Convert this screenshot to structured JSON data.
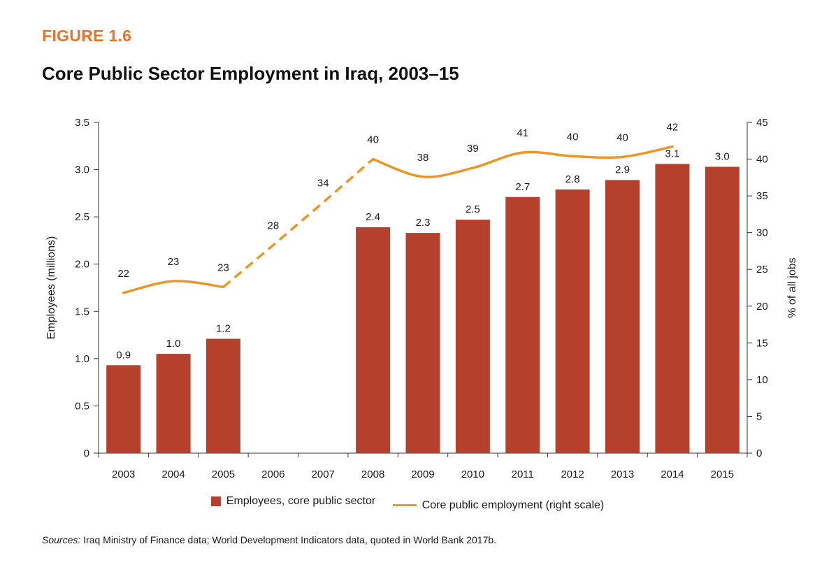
{
  "figure": {
    "label": "FIGURE 1.6",
    "title": "Core Public Sector Employment in Iraq, 2003–15",
    "source_prefix": "Sources:",
    "source_text": "Iraq Ministry of Finance data; World Development Indicators data, quoted in World Bank 2017b."
  },
  "colors": {
    "bar": "#b5402b",
    "line": "#e8972b",
    "label": "#e8732b"
  },
  "chart_data": {
    "type": "bar+line",
    "categories": [
      "2003",
      "2004",
      "2005",
      "2006",
      "2007",
      "2008",
      "2009",
      "2010",
      "2011",
      "2012",
      "2013",
      "2014",
      "2015"
    ],
    "series": [
      {
        "name": "Employees, core public sector",
        "type": "bar",
        "axis": "left",
        "values": [
          0.93,
          1.05,
          1.21,
          null,
          null,
          2.39,
          2.33,
          2.47,
          2.71,
          2.79,
          2.89,
          3.06,
          3.03
        ],
        "labels": [
          "0.9",
          "1.0",
          "1.2",
          "",
          "",
          "2.4",
          "2.3",
          "2.5",
          "2.7",
          "2.8",
          "2.9",
          "3.1",
          "3.0"
        ]
      },
      {
        "name": "Core public employment (right scale)",
        "type": "line",
        "axis": "right",
        "values": [
          21.8,
          23.4,
          22.6,
          28.3,
          34.1,
          40.0,
          37.6,
          38.8,
          40.9,
          40.4,
          40.3,
          41.7,
          null
        ],
        "labels": [
          "22",
          "23",
          "23",
          "28",
          "34",
          "40",
          "38",
          "39",
          "41",
          "40",
          "40",
          "42",
          ""
        ],
        "dashed_between": [
          "2005",
          "2008"
        ]
      }
    ],
    "ylabel": "Employees (millions)",
    "y2label": "% of all jobs",
    "ylim": [
      0,
      3.5
    ],
    "y2lim": [
      0,
      45
    ],
    "yticks": [
      "0",
      "0.5",
      "1.0",
      "1.5",
      "2.0",
      "2.5",
      "3.0",
      "3.5"
    ],
    "y2ticks": [
      "0",
      "5",
      "10",
      "15",
      "20",
      "25",
      "30",
      "35",
      "40",
      "45"
    ],
    "grid": false,
    "legend_position": "bottom"
  }
}
